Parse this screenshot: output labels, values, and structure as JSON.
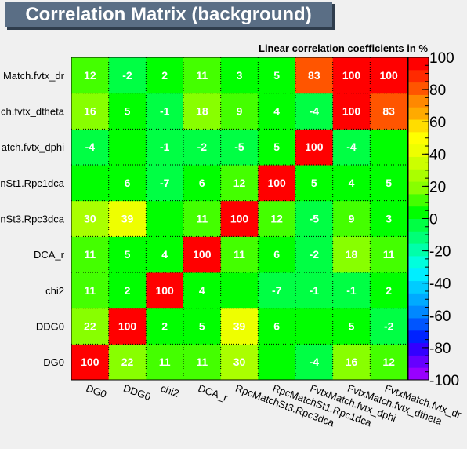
{
  "window": {
    "title": "Correlation Matrix (background)"
  },
  "chart_data": {
    "type": "heatmap",
    "title": "Correlation Matrix (background)",
    "subtitle": "Linear correlation coefficients in %",
    "variables": [
      "DG0",
      "DDG0",
      "chi2",
      "DCA_r",
      "RpcMatchSt3.Rpc3dca",
      "RpcMatchSt1.Rpc1dca",
      "FvtxMatch.fvtx_dphi",
      "FvtxMatch.fvtx_dtheta",
      "FvtxMatch.fvtx_dr"
    ],
    "x_tick_labels": [
      "DG0",
      "DDG0",
      "chi2",
      "DCA_r",
      "RpcMatchSt3.Rpc3dca",
      "RpcMatchSt1.Rpc1dca",
      "FvtxMatch.fvtx_dphi",
      "FvtxMatch.fvtx_dtheta",
      "FvtxMatch.fvtx_dr"
    ],
    "y_tick_labels": [
      "DG0",
      "DDG0",
      "chi2",
      "DCA_r",
      "nSt3.Rpc3dca",
      "nSt1.Rpc1dca",
      "atch.fvtx_dphi",
      "ch.fvtx_dtheta",
      "Match.fvtx_dr"
    ],
    "matrix": [
      [
        100,
        22,
        11,
        11,
        30,
        0,
        -4,
        16,
        12
      ],
      [
        22,
        100,
        2,
        5,
        39,
        6,
        0,
        5,
        -2
      ],
      [
        11,
        2,
        100,
        4,
        0,
        -7,
        -1,
        -1,
        2
      ],
      [
        11,
        5,
        4,
        100,
        11,
        6,
        -2,
        18,
        11
      ],
      [
        30,
        39,
        0,
        11,
        100,
        12,
        -5,
        9,
        3
      ],
      [
        0,
        6,
        -7,
        6,
        12,
        100,
        5,
        4,
        5
      ],
      [
        -4,
        0,
        -1,
        -2,
        -5,
        5,
        100,
        -4,
        0
      ],
      [
        16,
        5,
        -1,
        18,
        9,
        4,
        -4,
        100,
        83
      ],
      [
        12,
        -2,
        2,
        11,
        3,
        5,
        83,
        100,
        100
      ]
    ],
    "displayed_labels": [
      [
        "100",
        "22",
        "11",
        "11",
        "30",
        "",
        "-4",
        "16",
        "12"
      ],
      [
        "22",
        "100",
        "2",
        "5",
        "39",
        "6",
        "",
        "5",
        "-2"
      ],
      [
        "11",
        "2",
        "100",
        "4",
        "",
        "-7",
        "-1",
        "-1",
        "2"
      ],
      [
        "11",
        "5",
        "4",
        "100",
        "11",
        "6",
        "-2",
        "18",
        "11"
      ],
      [
        "30",
        "39",
        "",
        "11",
        "100",
        "12",
        "-5",
        "9",
        "3"
      ],
      [
        "",
        "6",
        "-7",
        "6",
        "12",
        "100",
        "5",
        "4",
        "5"
      ],
      [
        "-4",
        "",
        "-1",
        "-2",
        "-5",
        "5",
        "100",
        "-4",
        ""
      ],
      [
        "16",
        "5",
        "-1",
        "18",
        "9",
        "4",
        "-4",
        "100",
        "83"
      ],
      [
        "12",
        "-2",
        "2",
        "11",
        "3",
        "5",
        "83",
        "100",
        "100"
      ]
    ],
    "zlim": [
      -100,
      100
    ],
    "colorbar_ticks": [
      "100",
      "80",
      "60",
      "40",
      "20",
      "0",
      "-20",
      "-40",
      "-60",
      "-80",
      "-100"
    ],
    "palette": [
      "#9900ff",
      "#6600ff",
      "#3300ff",
      "#0022ff",
      "#0055ff",
      "#0088ff",
      "#00aaff",
      "#00ccff",
      "#00eeff",
      "#00ffdd",
      "#00ffaa",
      "#00ff77",
      "#00ff44",
      "#00ff00",
      "#44ff00",
      "#88ff00",
      "#aaff00",
      "#ccff00",
      "#eeff00",
      "#ffff00",
      "#ffdd00",
      "#ffaa00",
      "#ff8800",
      "#ff5500",
      "#ff2a00",
      "#ff0000"
    ],
    "grid": true
  }
}
